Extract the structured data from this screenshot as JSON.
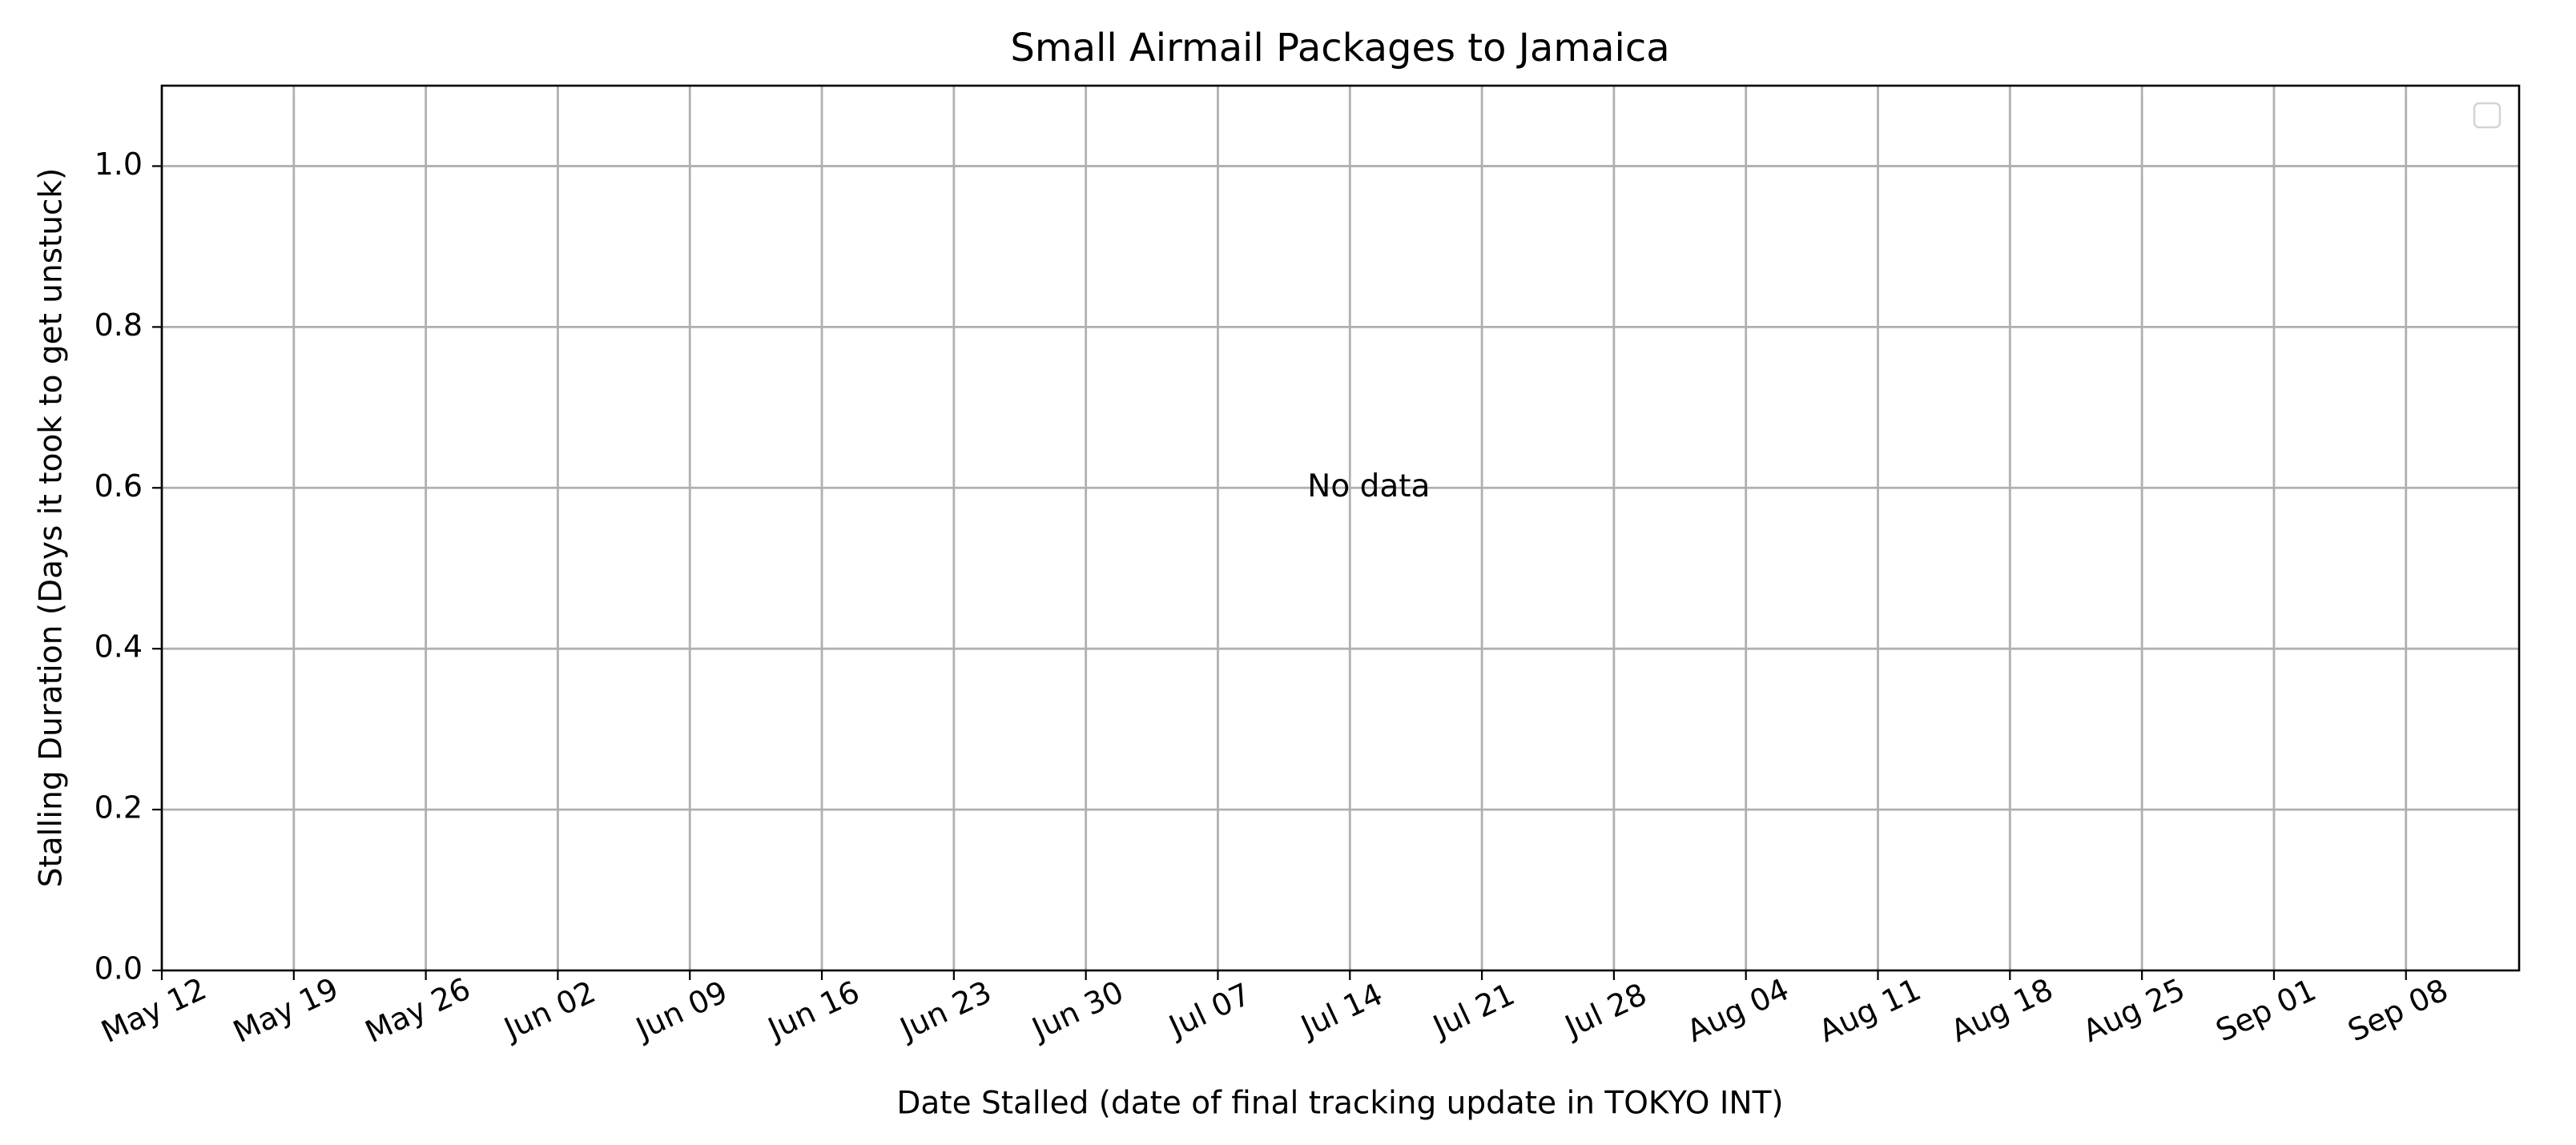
{
  "chart_data": {
    "type": "scatter",
    "title": "Small Airmail Packages to Jamaica",
    "xlabel": "Date Stalled (date of final tracking update in TOKYO INT)",
    "ylabel": "Stalling Duration (Days it took to get unstuck)",
    "x_axis_type": "date",
    "xlim": [
      "2024-05-12",
      "2024-09-14"
    ],
    "x_ticks": [
      {
        "date": "2024-05-12",
        "label": "May 12"
      },
      {
        "date": "2024-05-19",
        "label": "May 19"
      },
      {
        "date": "2024-05-26",
        "label": "May 26"
      },
      {
        "date": "2024-06-02",
        "label": "Jun 02"
      },
      {
        "date": "2024-06-09",
        "label": "Jun 09"
      },
      {
        "date": "2024-06-16",
        "label": "Jun 16"
      },
      {
        "date": "2024-06-23",
        "label": "Jun 23"
      },
      {
        "date": "2024-06-30",
        "label": "Jun 30"
      },
      {
        "date": "2024-07-07",
        "label": "Jul 07"
      },
      {
        "date": "2024-07-14",
        "label": "Jul 14"
      },
      {
        "date": "2024-07-21",
        "label": "Jul 21"
      },
      {
        "date": "2024-07-28",
        "label": "Jul 28"
      },
      {
        "date": "2024-08-04",
        "label": "Aug 04"
      },
      {
        "date": "2024-08-11",
        "label": "Aug 11"
      },
      {
        "date": "2024-08-18",
        "label": "Aug 18"
      },
      {
        "date": "2024-08-25",
        "label": "Aug 25"
      },
      {
        "date": "2024-09-01",
        "label": "Sep 01"
      },
      {
        "date": "2024-09-08",
        "label": "Sep 08"
      }
    ],
    "ylim": [
      0,
      1.1
    ],
    "y_ticks": [
      {
        "value": 0.0,
        "label": "0.0"
      },
      {
        "value": 0.2,
        "label": "0.2"
      },
      {
        "value": 0.4,
        "label": "0.4"
      },
      {
        "value": 0.6,
        "label": "0.6"
      },
      {
        "value": 0.8,
        "label": "0.8"
      },
      {
        "value": 1.0,
        "label": "1.0"
      }
    ],
    "grid": true,
    "series": [],
    "legend": {
      "placement": "top-right",
      "entries": []
    },
    "annotation": {
      "text": "No data",
      "x": "2024-07-15",
      "y": 0.6
    }
  }
}
